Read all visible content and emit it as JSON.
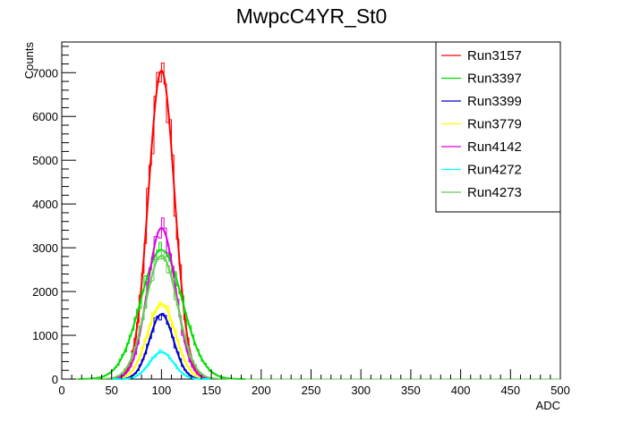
{
  "chart_data": {
    "type": "line",
    "title": "MwpcC4YR_St0",
    "xlabel": "ADC",
    "ylabel": "Counts",
    "xlim": [
      0,
      500
    ],
    "ylim": [
      0,
      7700
    ],
    "xticks": [
      0,
      50,
      100,
      150,
      200,
      250,
      300,
      350,
      400,
      450,
      500
    ],
    "yticks": [
      0,
      1000,
      2000,
      3000,
      4000,
      5000,
      6000,
      7000
    ],
    "grid": false,
    "legend_position": "top-right",
    "series": [
      {
        "name": "Run3157",
        "color": "#ff0000",
        "peak": 100,
        "sigma": 13,
        "max": 7050,
        "x": [
          60,
          70,
          80,
          85,
          90,
          95,
          100,
          105,
          110,
          115,
          120,
          130,
          140
        ],
        "y": [
          400,
          1500,
          3900,
          5300,
          6400,
          7000,
          7000,
          6600,
          5300,
          3900,
          2400,
          700,
          80
        ]
      },
      {
        "name": "Run3397",
        "color": "#00dd00",
        "peak": 100,
        "sigma": 21,
        "max": 2950,
        "x": [
          40,
          60,
          80,
          90,
          100,
          110,
          120,
          140,
          160
        ],
        "y": [
          50,
          600,
          1950,
          2700,
          2950,
          2700,
          1950,
          600,
          50
        ]
      },
      {
        "name": "Run3399",
        "color": "#0000cc",
        "peak": 100,
        "sigma": 12,
        "max": 1480,
        "x": [
          70,
          80,
          90,
          100,
          110,
          120,
          130
        ],
        "y": [
          200,
          700,
          1300,
          1480,
          1300,
          700,
          200
        ]
      },
      {
        "name": "Run3779",
        "color": "#ffff00",
        "peak": 100,
        "sigma": 14,
        "max": 1720,
        "x": [
          70,
          80,
          90,
          100,
          110,
          120,
          130
        ],
        "y": [
          300,
          950,
          1550,
          1720,
          1550,
          950,
          300
        ]
      },
      {
        "name": "Run4142",
        "color": "#dd00dd",
        "peak": 100,
        "sigma": 14,
        "max": 3450,
        "x": [
          70,
          80,
          90,
          100,
          110,
          120,
          130
        ],
        "y": [
          600,
          1900,
          3100,
          3450,
          3100,
          1900,
          600
        ]
      },
      {
        "name": "Run4272",
        "color": "#00ffff",
        "peak": 100,
        "sigma": 12,
        "max": 620,
        "x": [
          70,
          80,
          90,
          100,
          110,
          120,
          130
        ],
        "y": [
          60,
          280,
          520,
          620,
          520,
          280,
          60
        ]
      },
      {
        "name": "Run4273",
        "color": "#66cc55",
        "peak": 100,
        "sigma": 16,
        "max": 2820,
        "x": [
          60,
          70,
          80,
          90,
          100,
          110,
          120,
          130,
          140
        ],
        "y": [
          200,
          700,
          1700,
          2550,
          2820,
          2550,
          1700,
          700,
          200
        ]
      }
    ]
  }
}
